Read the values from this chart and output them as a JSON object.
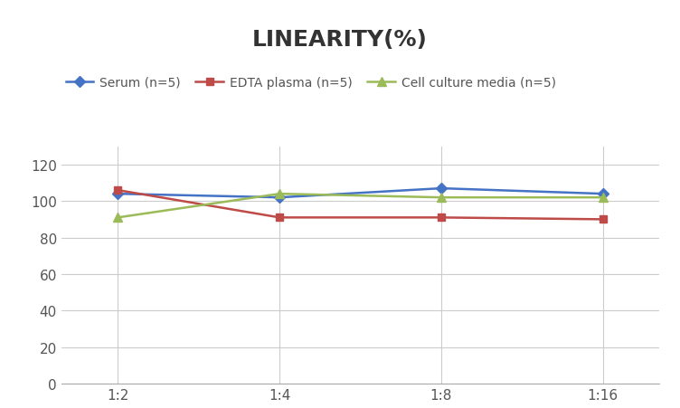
{
  "title": "LINEARITY(%)",
  "x_labels": [
    "1:2",
    "1:4",
    "1:8",
    "1:16"
  ],
  "x_positions": [
    0,
    1,
    2,
    3
  ],
  "series": [
    {
      "label": "Serum (n=5)",
      "values": [
        104,
        102,
        107,
        104
      ],
      "color": "#4472C4",
      "marker": "D",
      "marker_size": 6,
      "linewidth": 1.8
    },
    {
      "label": "EDTA plasma (n=5)",
      "values": [
        106,
        91,
        91,
        90
      ],
      "color": "#BE4B48",
      "marker": "s",
      "marker_size": 6,
      "linewidth": 1.8
    },
    {
      "label": "Cell culture media (n=5)",
      "values": [
        91,
        104,
        102,
        102
      ],
      "color": "#9BBB59",
      "marker": "^",
      "marker_size": 7,
      "linewidth": 1.8
    }
  ],
  "ylim": [
    0,
    130
  ],
  "yticks": [
    0,
    20,
    40,
    60,
    80,
    100,
    120
  ],
  "grid_color": "#CCCCCC",
  "background_color": "#FFFFFF",
  "title_fontsize": 18,
  "title_fontweight": "bold",
  "legend_fontsize": 10,
  "tick_fontsize": 11,
  "tick_color": "#555555"
}
